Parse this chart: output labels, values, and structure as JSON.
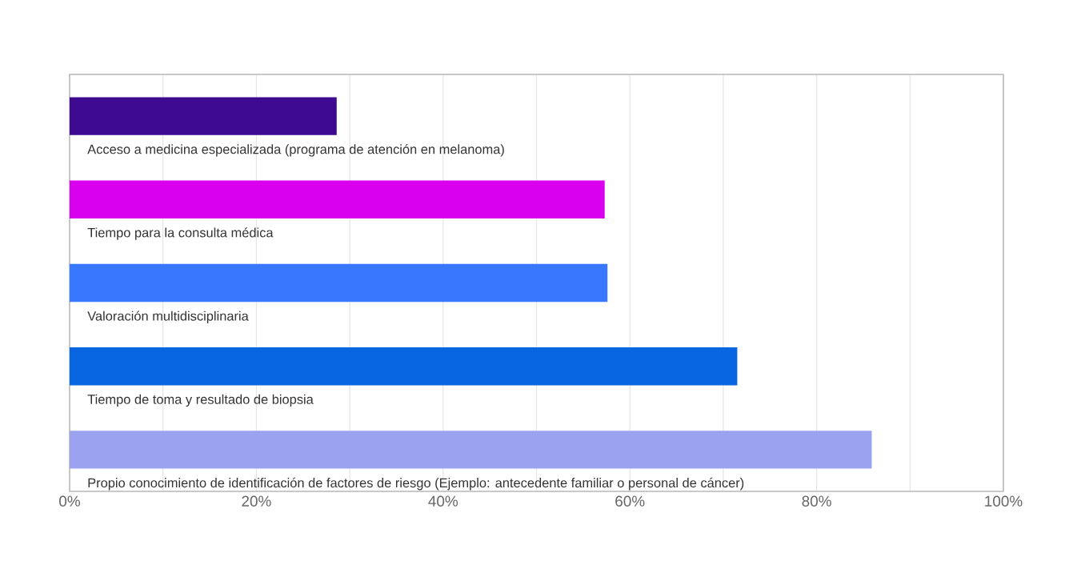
{
  "chart_data": {
    "type": "bar",
    "orientation": "horizontal",
    "categories": [
      "Acceso a medicina especializada (programa de atención en melanoma)",
      "Tiempo para la consulta médica",
      "Valoración multidisciplinaria",
      "Tiempo de toma y resultado de biopsia",
      "Propio conocimiento de identificación de factores de riesgo (Ejemplo: antecedente familiar o personal de cáncer)"
    ],
    "values": [
      28.6,
      57.3,
      57.6,
      71.5,
      85.9
    ],
    "colors": [
      "#3d0a91",
      "#d900ee",
      "#3877ff",
      "#0766e0",
      "#9ba3f1"
    ],
    "xlim": [
      0,
      100
    ],
    "xticks": [
      {
        "value": 0,
        "label": "0%"
      },
      {
        "value": 10,
        "label": null
      },
      {
        "value": 20,
        "label": "20%"
      },
      {
        "value": 30,
        "label": null
      },
      {
        "value": 40,
        "label": "40%"
      },
      {
        "value": 50,
        "label": null
      },
      {
        "value": 60,
        "label": "60%"
      },
      {
        "value": 70,
        "label": null
      },
      {
        "value": 80,
        "label": "80%"
      },
      {
        "value": 90,
        "label": null
      },
      {
        "value": 100,
        "label": "100%"
      }
    ],
    "grid": "x"
  }
}
